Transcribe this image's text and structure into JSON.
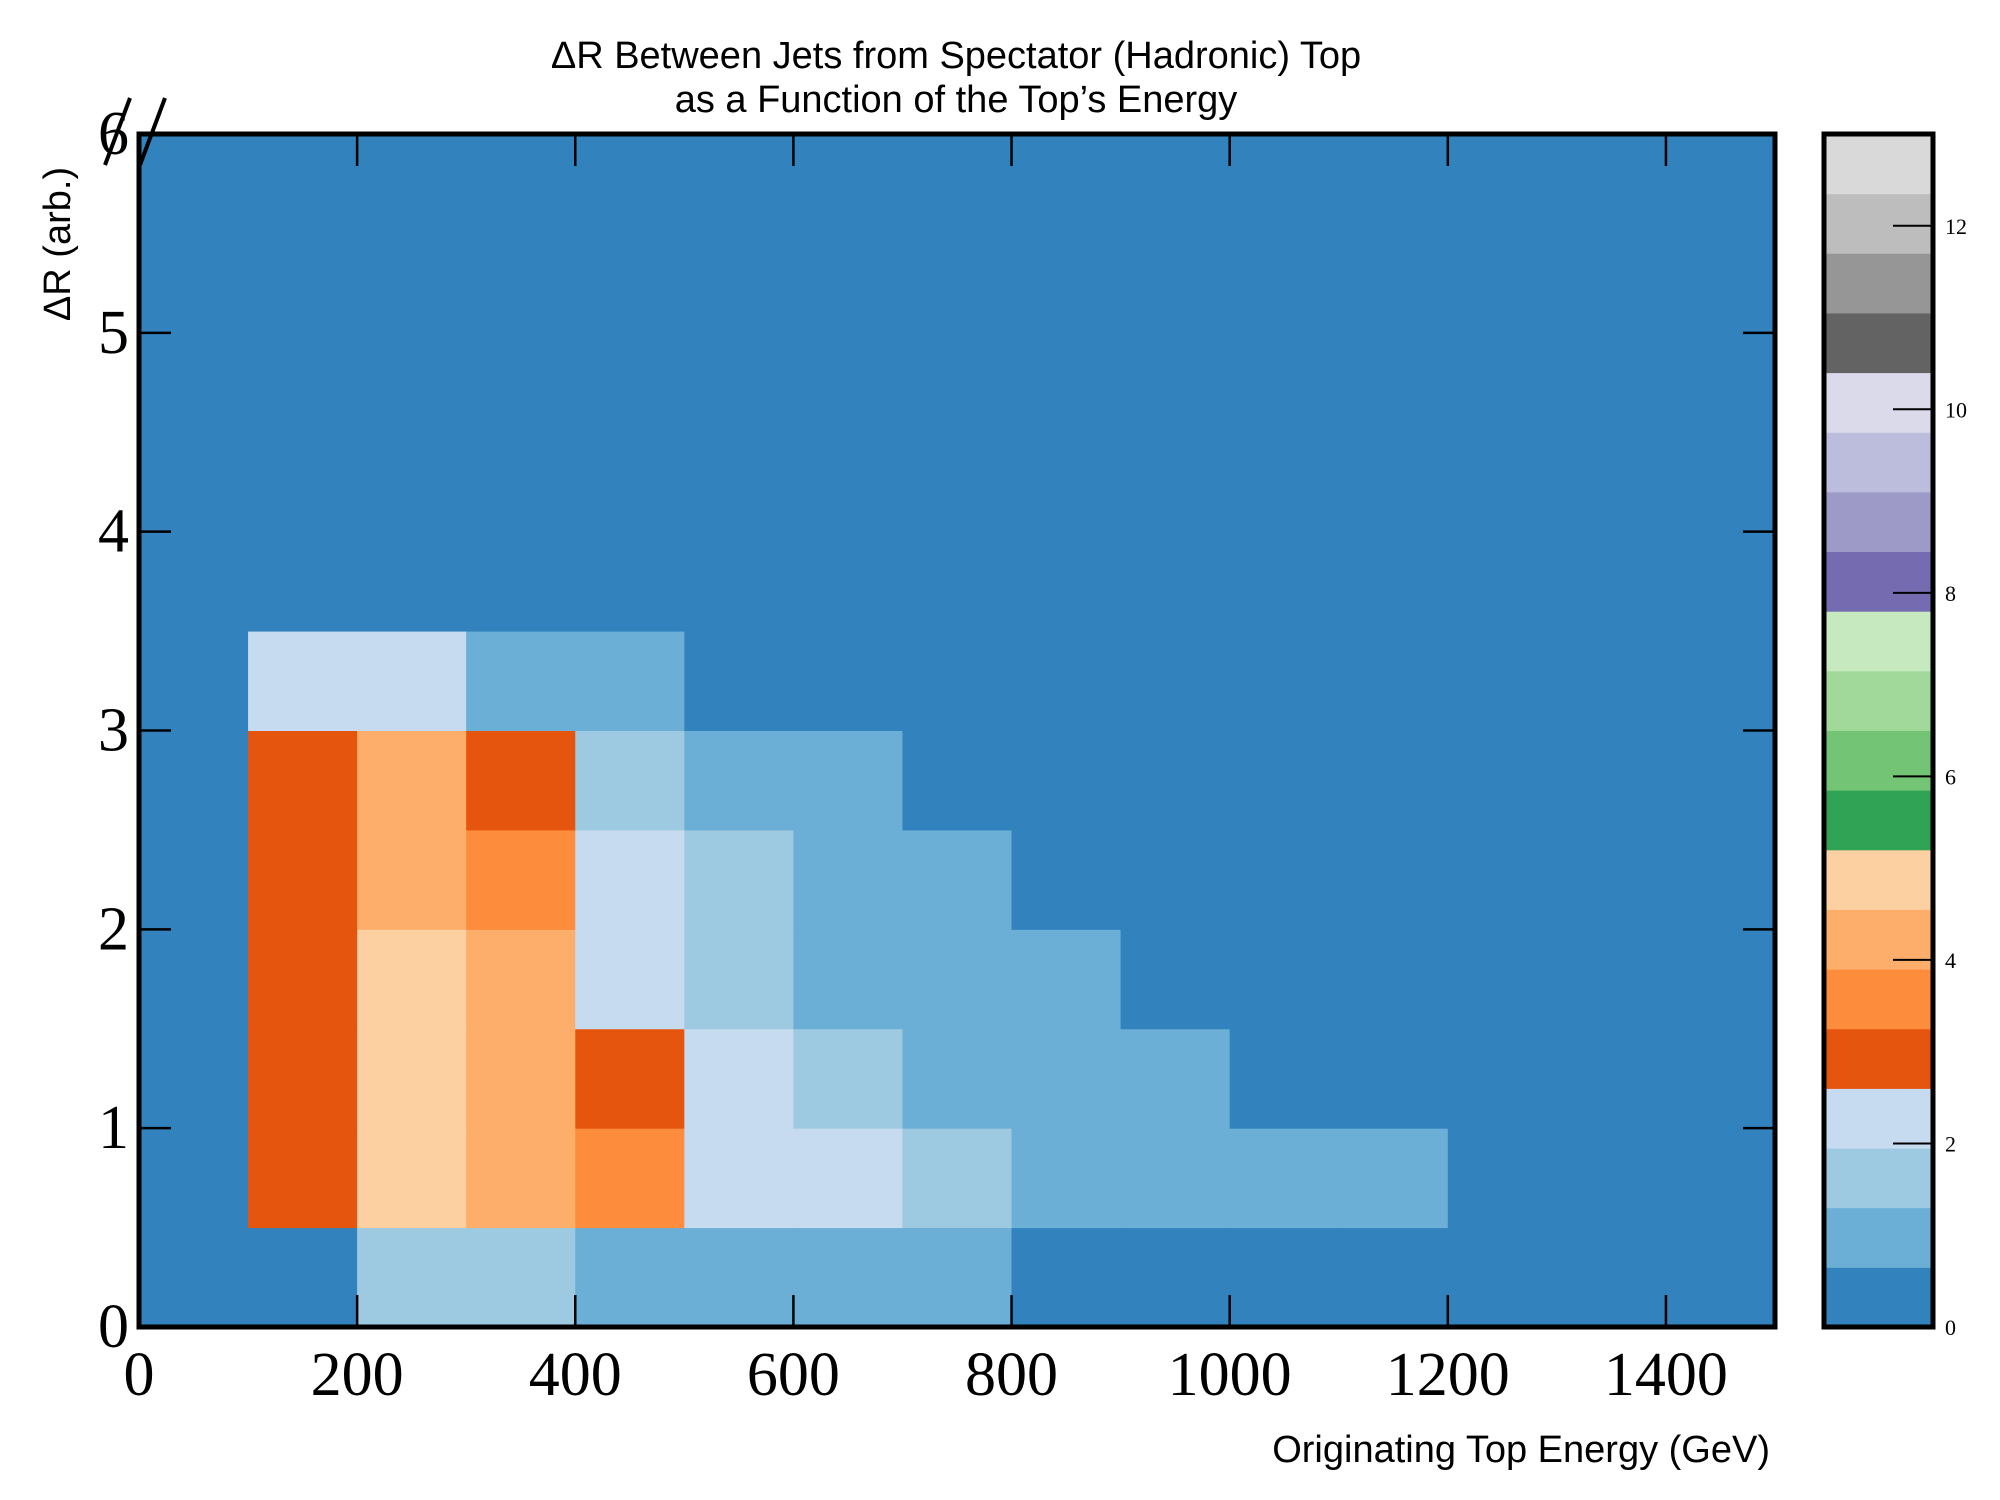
{
  "chart_data": {
    "type": "heatmap",
    "title": [
      "ΔR Between Jets from Spectator (Hadronic) Top",
      "as a Function of the Top’s Energy"
    ],
    "x_label": "Originating Top Energy (GeV)",
    "y_label": "ΔR (arb.)",
    "x_edges": [
      0,
      100,
      200,
      300,
      400,
      500,
      600,
      700,
      800,
      900,
      1000,
      1100,
      1200,
      1300,
      1400,
      1500
    ],
    "y_edges": [
      0,
      0.5,
      1,
      1.5,
      2,
      2.5,
      3,
      3.5,
      4,
      4.5,
      5,
      5.5,
      6
    ],
    "z": [
      [
        0,
        0.5,
        1.5,
        1.5,
        1.2,
        1,
        0.8,
        0.7,
        0.6,
        0.5,
        0.5,
        0.4,
        0.4,
        0.4,
        0.4
      ],
      [
        0,
        3,
        5,
        4.5,
        3.5,
        2.5,
        2,
        1.5,
        1.2,
        1,
        0.8,
        0.7,
        0.6,
        0.5,
        0.5
      ],
      [
        0,
        3,
        5,
        4.5,
        3,
        2,
        1.5,
        1.2,
        1,
        0.7,
        0.6,
        0.5,
        0.4,
        0.4,
        0.3
      ],
      [
        0,
        3,
        5,
        4,
        2.5,
        1.5,
        1.2,
        0.9,
        0.7,
        0.5,
        0.4,
        0.3,
        0.3,
        0.2,
        0.2
      ],
      [
        0,
        3,
        4.5,
        3.5,
        2,
        1.3,
        1,
        0.7,
        0.5,
        0.4,
        0.3,
        0.2,
        0.2,
        0.1,
        0.1
      ],
      [
        0,
        3,
        4,
        3,
        1.8,
        1.1,
        0.8,
        0.5,
        0.4,
        0.3,
        0.2,
        0.1,
        0.1,
        0.1,
        0.1
      ],
      [
        0,
        2,
        2,
        1.2,
        0.8,
        0.5,
        0.3,
        0.2,
        0.1,
        0.1,
        0,
        0,
        0,
        0,
        0
      ],
      [
        0,
        0.6,
        0.5,
        0.3,
        0.1,
        0.1,
        0,
        0,
        0,
        0,
        0,
        0,
        0,
        0,
        0
      ],
      [
        0,
        0.1,
        0.1,
        0.05,
        0,
        0,
        0,
        0,
        0,
        0,
        0,
        0,
        0,
        0,
        0
      ],
      [
        0,
        0,
        0,
        0,
        0,
        0,
        0,
        0,
        0,
        0,
        0,
        0,
        0,
        0,
        0
      ],
      [
        0,
        0,
        0,
        0,
        0,
        0,
        0,
        0,
        0,
        0,
        0,
        0,
        0,
        0,
        0
      ],
      [
        0,
        0,
        0,
        0,
        0,
        0,
        0,
        0,
        0,
        0,
        0,
        0,
        0,
        0,
        0
      ]
    ],
    "xlim": [
      0,
      1500
    ],
    "xticks": [
      0,
      200,
      400,
      600,
      800,
      1000,
      1200,
      1400
    ],
    "ylim": [
      0,
      6
    ],
    "yticks": [
      0,
      1,
      2,
      3,
      4,
      5,
      6
    ],
    "clim": [
      0,
      13
    ],
    "cticks": [
      0,
      2,
      4,
      6,
      8,
      10,
      12
    ],
    "colors": [
      "#3182bd",
      "#6baed6",
      "#9ecae1",
      "#c6dbef",
      "#e6550d",
      "#fd8d3c",
      "#fdae6b",
      "#fdd0a2",
      "#31a354",
      "#74c476",
      "#a1d99b",
      "#c7e9c0",
      "#756bb1",
      "#9e9ac8",
      "#bcbddc",
      "#dadaeb",
      "#636363",
      "#969696",
      "#bdbdbd",
      "#d9d9d9"
    ]
  }
}
